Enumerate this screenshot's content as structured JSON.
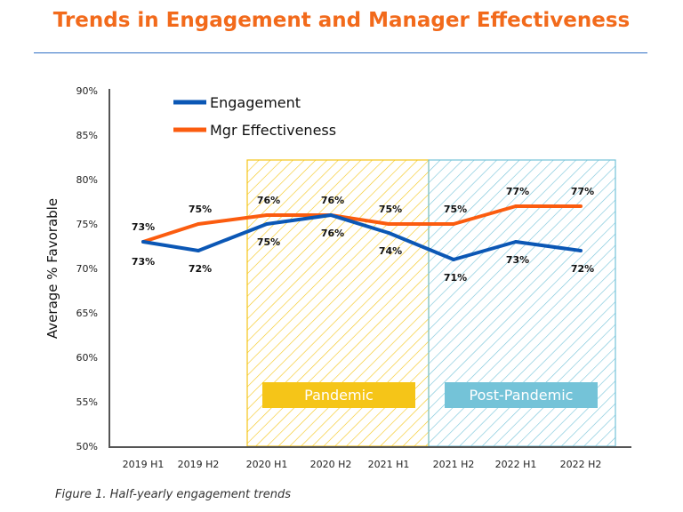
{
  "title": "Trends in Engagement and Manager Effectiveness",
  "caption": "Figure 1. Half-yearly engagement trends",
  "chart_data": {
    "type": "line",
    "ylabel": "Average % Favorable",
    "ylim": [
      50,
      90
    ],
    "yticks": [
      "50%",
      "55%",
      "60%",
      "65%",
      "70%",
      "75%",
      "80%",
      "85%",
      "90%"
    ],
    "categories": [
      "2019 H1",
      "2019 H2",
      "2020 H1",
      "2020 H2",
      "2021 H1",
      "2021 H2",
      "2022 H1",
      "2022 H2"
    ],
    "series": [
      {
        "name": "Engagement",
        "color": "#0b57b5",
        "values": [
          73,
          72,
          75,
          76,
          74,
          71,
          73,
          72
        ],
        "labels": [
          "73%",
          "72%",
          "75%",
          "76%",
          "74%",
          "71%",
          "73%",
          "72%"
        ]
      },
      {
        "name": "Mgr Effectiveness",
        "color": "#fb5c0f",
        "values": [
          73,
          75,
          76,
          76,
          75,
          75,
          77,
          77
        ],
        "labels": [
          "73%",
          "75%",
          "76%",
          "76%",
          "75%",
          "75%",
          "77%",
          "77%"
        ]
      }
    ],
    "regions": [
      {
        "label": "Pandemic",
        "from": "2020 H1",
        "to": "2021 H1",
        "color": "#f5c518"
      },
      {
        "label": "Post-Pandemic",
        "from": "2021 H2",
        "to": "2022 H2",
        "color": "#74c3d8"
      }
    ],
    "legend": "top-left",
    "grid": false
  }
}
